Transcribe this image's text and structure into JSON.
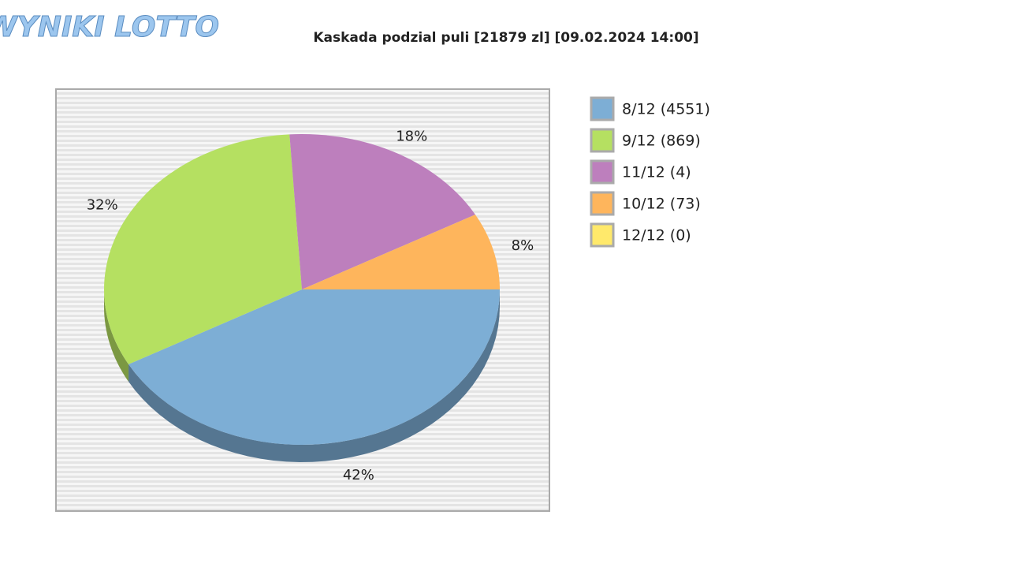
{
  "logo": "WYNIKI LOTTO",
  "chart_data": {
    "type": "pie",
    "title": "Kaskada podzial puli [21879 zl] [09.02.2024 14:00]",
    "categories": [
      "8/12 (4551)",
      "9/12 (869)",
      "11/12 (4)",
      "10/12 (73)",
      "12/12 (0)"
    ],
    "values": [
      42,
      32,
      18,
      8,
      0
    ],
    "value_labels": [
      "42%",
      "32%",
      "18%",
      "8%",
      null
    ],
    "colors": [
      "#7daed5",
      "#b5e061",
      "#bd7fbd",
      "#feb55c",
      "#ffe96b"
    ],
    "legend": "right"
  }
}
